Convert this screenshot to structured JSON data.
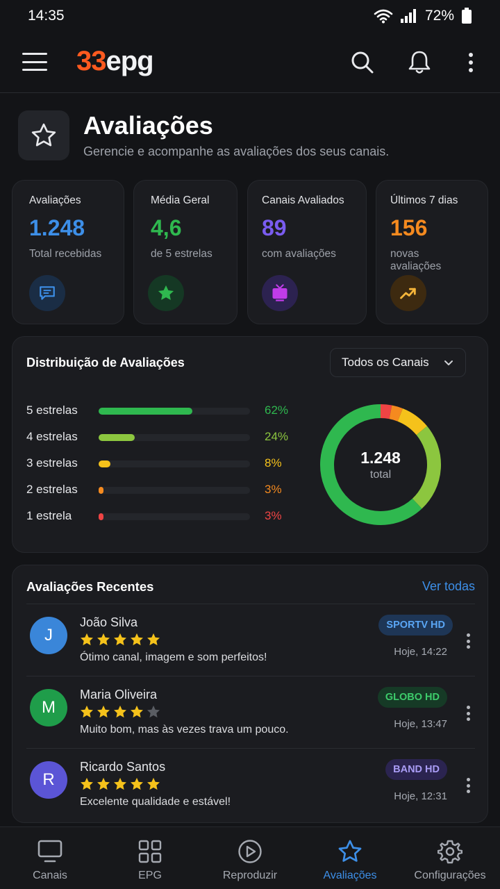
{
  "status": {
    "time": "14:35",
    "battery": "72%"
  },
  "app": {
    "logo_num": "33",
    "logo_text": "epg"
  },
  "page": {
    "title": "Avaliações",
    "subtitle": "Gerencie e acompanhe as avaliações dos seus canais."
  },
  "stats": [
    {
      "label": "Avaliações",
      "value": "1.248",
      "sub": "Total recebidas",
      "color": "#3d8fe8",
      "icon": "chat-icon"
    },
    {
      "label": "Média Geral",
      "value": "4,6",
      "sub": "de 5 estrelas",
      "color": "#2fb84f",
      "icon": "star-icon"
    },
    {
      "label": "Canais Avaliados",
      "value": "89",
      "sub": "com avaliações",
      "color": "#7a5cf0",
      "icon": "tv-icon"
    },
    {
      "label": "Últimos 7 dias",
      "value": "156",
      "sub": "novas avaliações",
      "color": "#f58a1f",
      "icon": "trending-up-icon"
    }
  ],
  "distribution": {
    "title": "Distribuição de Avaliações",
    "filter": "Todos os Canais",
    "rows": [
      {
        "label": "5 estrelas",
        "pct": "62%",
        "value": 62,
        "color": "#2fb84f"
      },
      {
        "label": "4 estrelas",
        "pct": "24%",
        "value": 24,
        "color": "#8cc63f"
      },
      {
        "label": "3 estrelas",
        "pct": "8%",
        "value": 8,
        "color": "#f5c21b"
      },
      {
        "label": "2 estrelas",
        "pct": "3%",
        "value": 3,
        "color": "#f58a1f"
      },
      {
        "label": "1 estrela",
        "pct": "3%",
        "value": 3,
        "color": "#ef4444"
      }
    ],
    "total": "1.248",
    "total_caption": "total"
  },
  "recent": {
    "title": "Avaliações Recentes",
    "link": "Ver todas",
    "items": [
      {
        "initial": "J",
        "name": "João Silva",
        "rating": 5,
        "text": "Ótimo canal, imagem e som perfeitos!",
        "channel": "SPORTV HD",
        "time": "Hoje, 14:22",
        "avatar_color": "#3a86d9",
        "chip_bg": "#1e3656",
        "chip_fg": "#5aa6f5"
      },
      {
        "initial": "M",
        "name": "Maria Oliveira",
        "rating": 4,
        "text": "Muito bom, mas às vezes trava um pouco.",
        "channel": "GLOBO HD",
        "time": "Hoje, 13:47",
        "avatar_color": "#1f9d4a",
        "chip_bg": "#163a26",
        "chip_fg": "#3dcc6b"
      },
      {
        "initial": "R",
        "name": "Ricardo Santos",
        "rating": 5,
        "text": "Excelente qualidade e estável!",
        "channel": "BAND HD",
        "time": "Hoje, 12:31",
        "avatar_color": "#5b55d6",
        "chip_bg": "#2b2450",
        "chip_fg": "#a99cf5"
      }
    ]
  },
  "nav": [
    {
      "label": "Canais",
      "icon": "tv-icon",
      "active": false
    },
    {
      "label": "EPG",
      "icon": "grid-icon",
      "active": false
    },
    {
      "label": "Reproduzir",
      "icon": "play-icon",
      "active": false
    },
    {
      "label": "Avaliações",
      "icon": "star-icon",
      "active": true
    },
    {
      "label": "Configurações",
      "icon": "gear-icon",
      "active": false
    }
  ]
}
